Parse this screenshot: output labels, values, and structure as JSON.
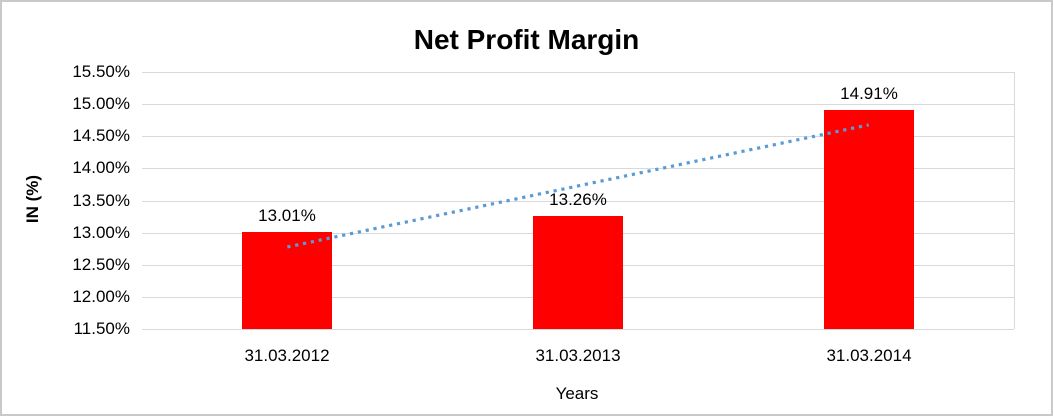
{
  "chart_data": {
    "type": "bar",
    "title": "Net Profit Margin",
    "xlabel": "Years",
    "ylabel": "IN (%)",
    "categories": [
      "31.03.2012",
      "31.03.2013",
      "31.03.2014"
    ],
    "values": [
      13.01,
      13.26,
      14.91
    ],
    "data_labels": [
      "13.01%",
      "13.26%",
      "14.91%"
    ],
    "y_ticks": [
      "15.50%",
      "15.00%",
      "14.50%",
      "14.00%",
      "13.50%",
      "13.00%",
      "12.50%",
      "12.00%",
      "11.50%"
    ],
    "ylim": [
      11.5,
      15.5
    ],
    "y_tick_step": 0.5,
    "grid": "horizontal-major",
    "legend": "none",
    "trendline": "linear-dotted",
    "colors": {
      "bar": "#ff0000",
      "trendline": "#5b9bd5",
      "gridline": "#d9d9d9",
      "text": "#000000",
      "chart_border": "#c9c9c9",
      "background": "#ffffff"
    }
  }
}
